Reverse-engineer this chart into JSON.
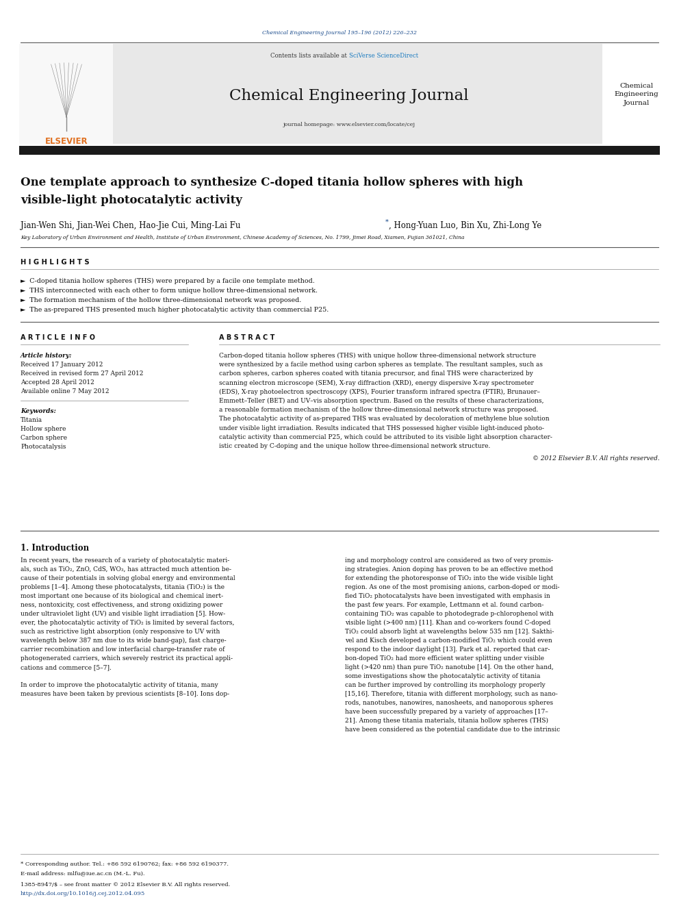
{
  "page_width": 9.92,
  "page_height": 13.23,
  "bg_color": "#ffffff",
  "top_journal_ref": "Chemical Engineering Journal 195–196 (2012) 226–232",
  "top_journal_ref_color": "#1a4b8c",
  "contents_line": "Contents lists available at",
  "sciverse_text": "SciVerse ScienceDirect",
  "sciverse_color": "#1a7abf",
  "journal_name": "Chemical Engineering Journal",
  "journal_homepage": "journal homepage: www.elsevier.com/locate/cej",
  "journal_logo_right": "Chemical\nEngineering\nJournal",
  "header_bg": "#e8e8e8",
  "thick_bar_color": "#1a1a1a",
  "elsevier_color": "#e07020",
  "article_title_line1": "One template approach to synthesize C-doped titania hollow spheres with high",
  "article_title_line2": "visible-light photocatalytic activity",
  "authors_main": "Jian-Wen Shi, Jian-Wei Chen, Hao-Jie Cui, Ming-Lai Fu",
  "authors_rest": ", Hong-Yuan Luo, Bin Xu, Zhi-Long Ye",
  "affiliation": "Key Laboratory of Urban Environment and Health, Institute of Urban Environment, Chinese Academy of Sciences, No. 1799, Jimei Road, Xiamen, Fujian 361021, China",
  "highlights_title": "H I G H L I G H T S",
  "highlights": [
    "C-doped titania hollow spheres (THS) were prepared by a facile one template method.",
    "THS interconnected with each other to form unique hollow three-dimensional network.",
    "The formation mechanism of the hollow three-dimensional network was proposed.",
    "The as-prepared THS presented much higher photocatalytic activity than commercial P25."
  ],
  "article_info_title": "A R T I C L E  I N F O",
  "abstract_title": "A B S T R A C T",
  "article_history_label": "Article history:",
  "received": "Received 17 January 2012",
  "received_revised": "Received in revised form 27 April 2012",
  "accepted": "Accepted 28 April 2012",
  "available": "Available online 7 May 2012",
  "keywords_label": "Keywords:",
  "keywords": [
    "Titania",
    "Hollow sphere",
    "Carbon sphere",
    "Photocatalysis"
  ],
  "abstract_lines": [
    "Carbon-doped titania hollow spheres (THS) with unique hollow three-dimensional network structure",
    "were synthesized by a facile method using carbon spheres as template. The resultant samples, such as",
    "carbon spheres, carbon spheres coated with titania precursor, and final THS were characterized by",
    "scanning electron microscope (SEM), X-ray diffraction (XRD), energy dispersive X-ray spectrometer",
    "(EDS), X-ray photoelectron spectroscopy (XPS), Fourier transform infrared spectra (FTIR), Brunauer–",
    "Emmett–Teller (BET) and UV–vis absorption spectrum. Based on the results of these characterizations,",
    "a reasonable formation mechanism of the hollow three-dimensional network structure was proposed.",
    "The photocatalytic activity of as-prepared THS was evaluated by decoloration of methylene blue solution",
    "under visible light irradiation. Results indicated that THS possessed higher visible light-induced photo-",
    "catalytic activity than commercial P25, which could be attributed to its visible light absorption character-",
    "istic created by C-doping and the unique hollow three-dimensional network structure."
  ],
  "copyright": "© 2012 Elsevier B.V. All rights reserved.",
  "intro_title": "1. Introduction",
  "intro_col1_lines": [
    "In recent years, the research of a variety of photocatalytic materi-",
    "als, such as TiO₂, ZnO, CdS, WO₃, has attracted much attention be-",
    "cause of their potentials in solving global energy and environmental",
    "problems [1–4]. Among these photocatalysts, titania (TiO₂) is the",
    "most important one because of its biological and chemical inert-",
    "ness, nontoxicity, cost effectiveness, and strong oxidizing power",
    "under ultraviolet light (UV) and visible light irradiation [5]. How-",
    "ever, the photocatalytic activity of TiO₂ is limited by several factors,",
    "such as restrictive light absorption (only responsive to UV with",
    "wavelength below 387 nm due to its wide band-gap), fast charge-",
    "carrier recombination and low interfacial charge-transfer rate of",
    "photogenerated carriers, which severely restrict its practical appli-",
    "cations and commerce [5–7].",
    "",
    "In order to improve the photocatalytic activity of titania, many",
    "measures have been taken by previous scientists [8–10]. Ions dop-"
  ],
  "intro_col2_lines": [
    "ing and morphology control are considered as two of very promis-",
    "ing strategies. Anion doping has proven to be an effective method",
    "for extending the photoresponse of TiO₂ into the wide visible light",
    "region. As one of the most promising anions, carbon-doped or modi-",
    "fied TiO₂ photocatalysts have been investigated with emphasis in",
    "the past few years. For example, Lettmann et al. found carbon-",
    "containing TiO₂ was capable to photodegrade p-chlorophenol with",
    "visible light (>400 nm) [11]. Khan and co-workers found C-doped",
    "TiO₂ could absorb light at wavelengths below 535 nm [12]. Sakthi-",
    "vel and Kisch developed a carbon-modified TiO₂ which could even",
    "respond to the indoor daylight [13]. Park et al. reported that car-",
    "bon-doped TiO₂ had more efficient water splitting under visible",
    "light (>420 nm) than pure TiO₂ nanotube [14]. On the other hand,",
    "some investigations show the photocatalytic activity of titania",
    "can be further improved by controlling its morphology properly",
    "[15,16]. Therefore, titania with different morphology, such as nano-",
    "rods, nanotubes, nanowires, nanosheets, and nanoporous spheres",
    "have been successfully prepared by a variety of approaches [17–",
    "21]. Among these titania materials, titania hollow spheres (THS)",
    "have been considered as the potential candidate due to the intrinsic"
  ],
  "footnote_star": "* Corresponding author. Tel.: +86 592 6190762; fax: +86 592 6190377.",
  "footnote_email": "E-mail address: mlfu@iue.ac.cn (M.-L. Fu).",
  "issn_line": "1385-8947/$ – see front matter © 2012 Elsevier B.V. All rights reserved.",
  "doi_line": "http://dx.doi.org/10.1016/j.cej.2012.04.095",
  "doi_color": "#1a4b8c",
  "text_color": "#111111",
  "link_color": "#1a4b8c"
}
